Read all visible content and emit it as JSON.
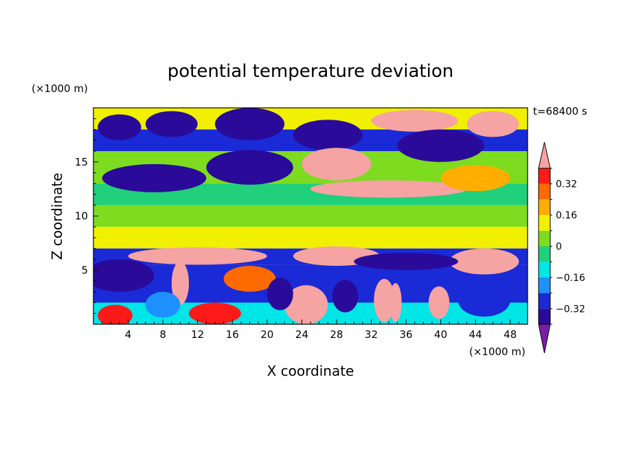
{
  "chart_data": {
    "type": "heatmap",
    "title": "potential temperature deviation",
    "xlabel": "X coordinate",
    "ylabel": "Z coordinate",
    "x_unit": "(×1000 m)",
    "y_unit": "(×1000 m)",
    "time_label": "t=68400 s",
    "xlim": [
      0,
      50
    ],
    "ylim": [
      0,
      20
    ],
    "x_ticks": [
      4,
      8,
      12,
      16,
      20,
      24,
      28,
      32,
      36,
      40,
      44,
      48
    ],
    "y_ticks": [
      5,
      10,
      15
    ],
    "colorbar": {
      "levels": [
        -0.4,
        -0.32,
        -0.24,
        -0.16,
        -0.08,
        0,
        0.08,
        0.16,
        0.24,
        0.32,
        0.4
      ],
      "tick_values": [
        0.32,
        0.16,
        0,
        -0.16,
        -0.32
      ],
      "tick_labels": [
        "0.32",
        "0.16",
        "0",
        "−0.16",
        "−0.32"
      ],
      "colors": [
        "#7a1fa8",
        "#2a0a99",
        "#1a2ad6",
        "#1e90ff",
        "#00e5e5",
        "#20d07a",
        "#7ddc1f",
        "#f0f000",
        "#ffae00",
        "#ff6a00",
        "#ff1a1a",
        "#f5a3a3"
      ],
      "extend": "both"
    },
    "bands": [
      {
        "z": [
          18.0,
          20.0
        ],
        "value": 0.1
      },
      {
        "z": [
          16.0,
          18.0
        ],
        "value": -0.3
      },
      {
        "z": [
          13.0,
          16.0
        ],
        "value": 0.05
      },
      {
        "z": [
          11.0,
          13.0
        ],
        "value": -0.05
      },
      {
        "z": [
          9.0,
          11.0
        ],
        "value": 0.05
      },
      {
        "z": [
          7.0,
          9.0
        ],
        "value": 0.15
      },
      {
        "z": [
          5.5,
          7.0
        ],
        "value": -0.3
      },
      {
        "z": [
          2.0,
          5.5
        ],
        "value": -0.25
      },
      {
        "z": [
          0.0,
          2.0
        ],
        "value": -0.1
      }
    ],
    "features": [
      {
        "x": 3,
        "z": 18.2,
        "rx": 2.5,
        "rz": 1.2,
        "value": -0.35
      },
      {
        "x": 9,
        "z": 18.5,
        "rx": 3,
        "rz": 1.2,
        "value": -0.35
      },
      {
        "x": 18,
        "z": 18.5,
        "rx": 4,
        "rz": 1.5,
        "value": -0.35
      },
      {
        "x": 27,
        "z": 17.5,
        "rx": 4,
        "rz": 1.4,
        "value": -0.35
      },
      {
        "x": 37,
        "z": 18.8,
        "rx": 5,
        "rz": 1,
        "value": 0.45
      },
      {
        "x": 46,
        "z": 18.5,
        "rx": 3,
        "rz": 1.2,
        "value": 0.45
      },
      {
        "x": 7,
        "z": 13.5,
        "rx": 6,
        "rz": 1.3,
        "value": -0.35
      },
      {
        "x": 18,
        "z": 14.5,
        "rx": 5,
        "rz": 1.6,
        "value": -0.35
      },
      {
        "x": 28,
        "z": 14.8,
        "rx": 4,
        "rz": 1.5,
        "value": 0.45
      },
      {
        "x": 40,
        "z": 16.5,
        "rx": 5,
        "rz": 1.5,
        "value": -0.35
      },
      {
        "x": 34,
        "z": 12.5,
        "rx": 9,
        "rz": 0.8,
        "value": 0.45
      },
      {
        "x": 44,
        "z": 13.5,
        "rx": 4,
        "rz": 1.2,
        "value": 0.2
      },
      {
        "x": 12,
        "z": 6.3,
        "rx": 8,
        "rz": 0.8,
        "value": 0.45
      },
      {
        "x": 28,
        "z": 6.3,
        "rx": 5,
        "rz": 0.9,
        "value": 0.45
      },
      {
        "x": 45,
        "z": 5.8,
        "rx": 4,
        "rz": 1.2,
        "value": 0.45
      },
      {
        "x": 36,
        "z": 5.8,
        "rx": 6,
        "rz": 0.8,
        "value": -0.35
      },
      {
        "x": 3,
        "z": 4.5,
        "rx": 4,
        "rz": 1.5,
        "value": -0.4
      },
      {
        "x": 10,
        "z": 3.8,
        "rx": 1,
        "rz": 2,
        "value": 0.45
      },
      {
        "x": 18,
        "z": 4.2,
        "rx": 3,
        "rz": 1.2,
        "value": 0.3
      },
      {
        "x": 24.5,
        "z": 1.8,
        "rx": 2.5,
        "rz": 1.8,
        "value": 0.4
      },
      {
        "x": 33.5,
        "z": 2.2,
        "rx": 1.2,
        "rz": 2,
        "value": 0.4
      },
      {
        "x": 34.8,
        "z": 2.0,
        "rx": 0.7,
        "rz": 1.8,
        "value": 0.4
      },
      {
        "x": 39.8,
        "z": 2.0,
        "rx": 1.2,
        "rz": 1.5,
        "value": 0.4
      },
      {
        "x": 21.5,
        "z": 2.8,
        "rx": 1.5,
        "rz": 1.5,
        "value": -0.35
      },
      {
        "x": 29,
        "z": 2.6,
        "rx": 1.5,
        "rz": 1.5,
        "value": -0.35
      },
      {
        "x": 2.5,
        "z": 0.8,
        "rx": 2,
        "rz": 1,
        "value": 0.35
      },
      {
        "x": 14,
        "z": 1.0,
        "rx": 3,
        "rz": 1,
        "value": 0.35
      },
      {
        "x": 8,
        "z": 1.8,
        "rx": 2,
        "rz": 1.2,
        "value": -0.2
      },
      {
        "x": 45,
        "z": 2.2,
        "rx": 3,
        "rz": 1.5,
        "value": -0.25
      }
    ]
  }
}
